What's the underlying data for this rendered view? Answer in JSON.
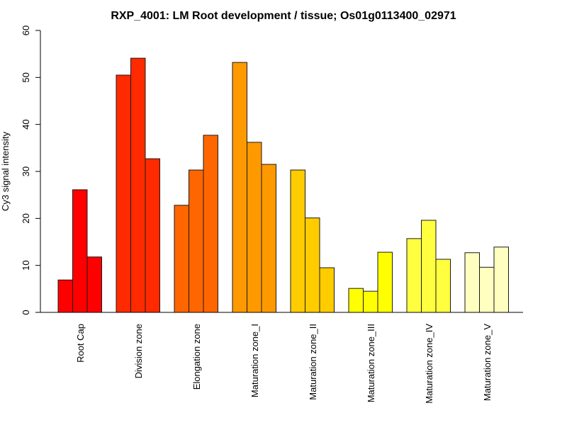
{
  "chart_data": {
    "type": "bar",
    "title": "RXP_4001: LM Root development / tissue; Os01g0113400_02971",
    "xlabel": "",
    "ylabel": "Cy3 signal intensity",
    "ylim": [
      0,
      60
    ],
    "yticks": [
      "0",
      "10",
      "20",
      "30",
      "40",
      "50",
      "60"
    ],
    "grid": false,
    "legend": "none",
    "categories": [
      "Root Cap",
      "Division zone",
      "Elongation zone",
      "Maturation zone_I",
      "Maturation zone_II",
      "Maturation zone_III",
      "Maturation zone_IV",
      "Maturation zone_V"
    ],
    "colors": [
      "#ff0000",
      "#ff2a00",
      "#ff6600",
      "#ff9900",
      "#ffcc00",
      "#ffff00",
      "#ffff40",
      "#ffffbf"
    ],
    "replicates_per_category": 3,
    "values": [
      [
        6.9,
        26.1,
        11.8
      ],
      [
        50.5,
        54.1,
        32.7
      ],
      [
        22.8,
        30.3,
        37.7
      ],
      [
        53.2,
        36.2,
        31.5
      ],
      [
        30.3,
        20.1,
        9.5
      ],
      [
        5.1,
        4.5,
        12.8
      ],
      [
        15.7,
        19.6,
        11.3
      ],
      [
        12.7,
        9.6,
        13.9
      ]
    ]
  }
}
